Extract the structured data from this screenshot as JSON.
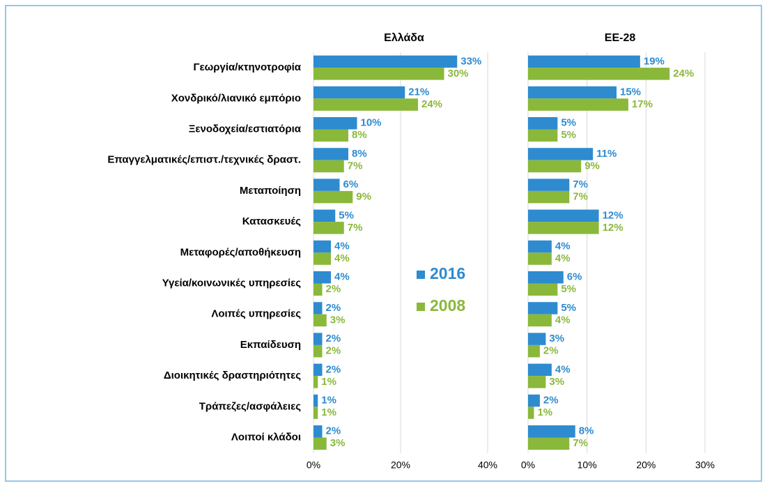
{
  "chart_data": [
    {
      "type": "hbar",
      "title": "Ελλάδα",
      "categories": [
        "Γεωργία/κτηνοτροφία",
        "Χονδρικό/λιανικό εμπόριο",
        "Ξενοδοχεία/εστιατόρια",
        "Επαγγελματικές/επιστ./τεχνικές δραστ.",
        "Μεταποίηση",
        "Κατασκευές",
        "Μεταφορές/αποθήκευση",
        "Υγεία/κοινωνικές υπηρεσίες",
        "Λοιπές υπηρεσίες",
        "Εκπαίδευση",
        "Διοικητικές δραστηριότητες",
        "Τράπεζες/ασφάλειες",
        "Λοιποί κλάδοι"
      ],
      "series": [
        {
          "name": "2016",
          "color": "#2e8bd0",
          "values": [
            33,
            21,
            10,
            8,
            6,
            5,
            4,
            4,
            2,
            2,
            2,
            1,
            2
          ],
          "value_labels": [
            "33%",
            "21%",
            "10%",
            "8%",
            "6%",
            "5%",
            "4%",
            "4%",
            "2%",
            "2%",
            "2%",
            "1%",
            "2%"
          ]
        },
        {
          "name": "2008",
          "color": "#8ab83a",
          "values": [
            30,
            24,
            8,
            7,
            9,
            7,
            4,
            2,
            3,
            2,
            1,
            1,
            3
          ],
          "value_labels": [
            "30%",
            "24%",
            "8%",
            "7%",
            "9%",
            "7%",
            "4%",
            "2%",
            "3%",
            "2%",
            "1%",
            "1%",
            "3%"
          ]
        }
      ],
      "xlim": [
        0,
        40
      ],
      "xticks": [
        {
          "value": 0,
          "label": "0%"
        },
        {
          "value": 20,
          "label": "20%"
        },
        {
          "value": 40,
          "label": "40%"
        }
      ],
      "grid": true
    },
    {
      "type": "hbar",
      "title": "ΕΕ-28",
      "series": [
        {
          "color": "#2e8bd0",
          "values": [
            19,
            15,
            5,
            11,
            7,
            12,
            4,
            6,
            5,
            3,
            4,
            2,
            8
          ],
          "value_labels": [
            "19%",
            "15%",
            "5%",
            "11%",
            "7%",
            "12%",
            "4%",
            "6%",
            "5%",
            "3%",
            "4%",
            "2%",
            "8%"
          ]
        },
        {
          "color": "#8ab83a",
          "values": [
            24,
            17,
            5,
            9,
            7,
            12,
            4,
            5,
            4,
            2,
            3,
            1,
            7
          ],
          "value_labels": [
            "24%",
            "17%",
            "5%",
            "9%",
            "7%",
            "12%",
            "4%",
            "5%",
            "4%",
            "2%",
            "3%",
            "1%",
            "7%"
          ]
        }
      ],
      "xlim": [
        0,
        30
      ],
      "xticks": [
        {
          "value": 0,
          "label": "0%"
        },
        {
          "value": 10,
          "label": "10%"
        },
        {
          "value": 20,
          "label": "20%"
        },
        {
          "value": 30,
          "label": "30%"
        }
      ],
      "grid": true
    }
  ]
}
